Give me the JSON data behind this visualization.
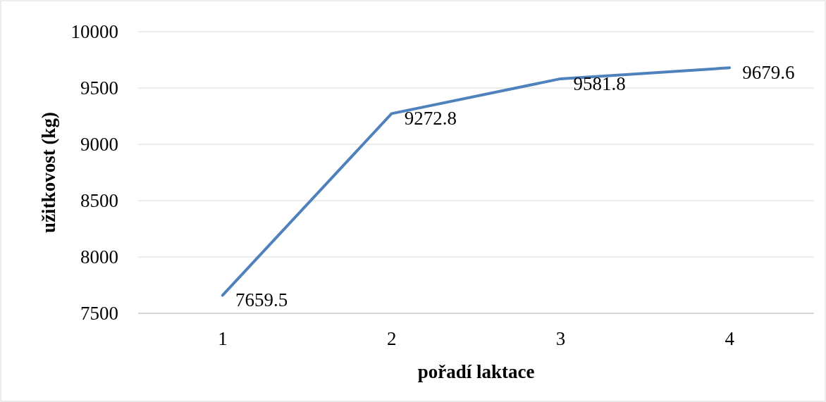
{
  "chart_data": {
    "type": "line",
    "xlabel": "pořadí laktace",
    "ylabel": "užitkovost (kg)",
    "categories": [
      "1",
      "2",
      "3",
      "4"
    ],
    "series": [
      {
        "color": "#4f81bd",
        "values": [
          7659.5,
          9272.8,
          9581.8,
          9679.6
        ]
      }
    ],
    "ylim": [
      7500,
      10000
    ],
    "yticks": [
      7500,
      8000,
      8500,
      9000,
      9500,
      10000
    ],
    "grid": "y",
    "data_labels": true,
    "marker": "none",
    "line_style": "solid"
  }
}
